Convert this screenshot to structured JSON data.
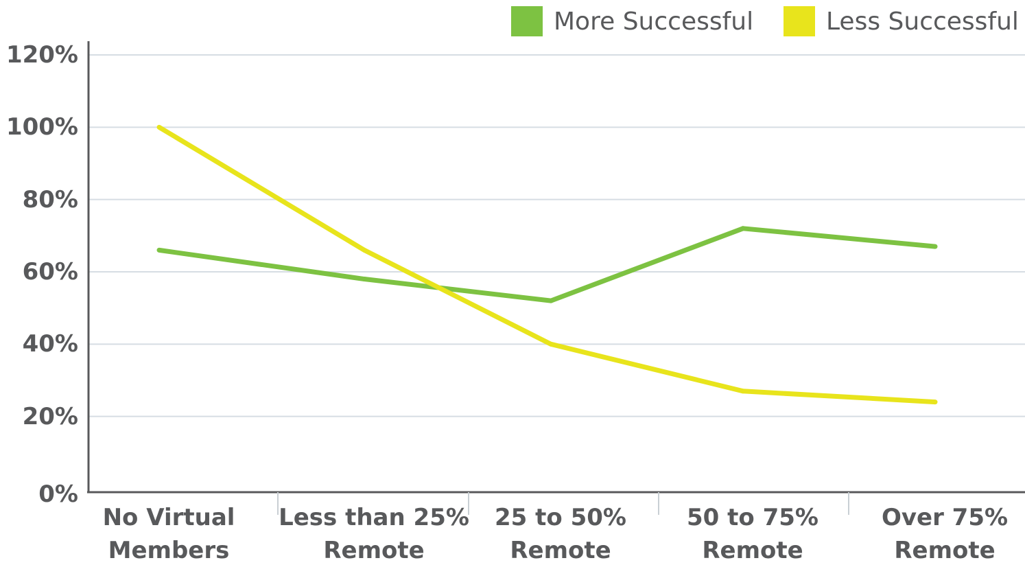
{
  "chart_data": {
    "type": "line",
    "categories": [
      [
        "No Virtual",
        "Members"
      ],
      [
        "Less than 25%",
        "Remote"
      ],
      [
        "25 to 50%",
        "Remote"
      ],
      [
        "50 to 75%",
        "Remote"
      ],
      [
        "Over 75%",
        "Remote"
      ]
    ],
    "series": [
      {
        "name": "More Successful",
        "color": "#7dc242",
        "values": [
          66,
          58,
          52,
          72,
          67
        ]
      },
      {
        "name": "Less Successful",
        "color": "#e8e41c",
        "values": [
          100,
          66,
          40,
          27,
          24
        ]
      }
    ],
    "yticks": [
      "0%",
      "20%",
      "40%",
      "60%",
      "80%",
      "100%",
      "120%"
    ],
    "ylim": [
      0,
      120
    ],
    "grid": true,
    "legend_position": "top-right"
  }
}
